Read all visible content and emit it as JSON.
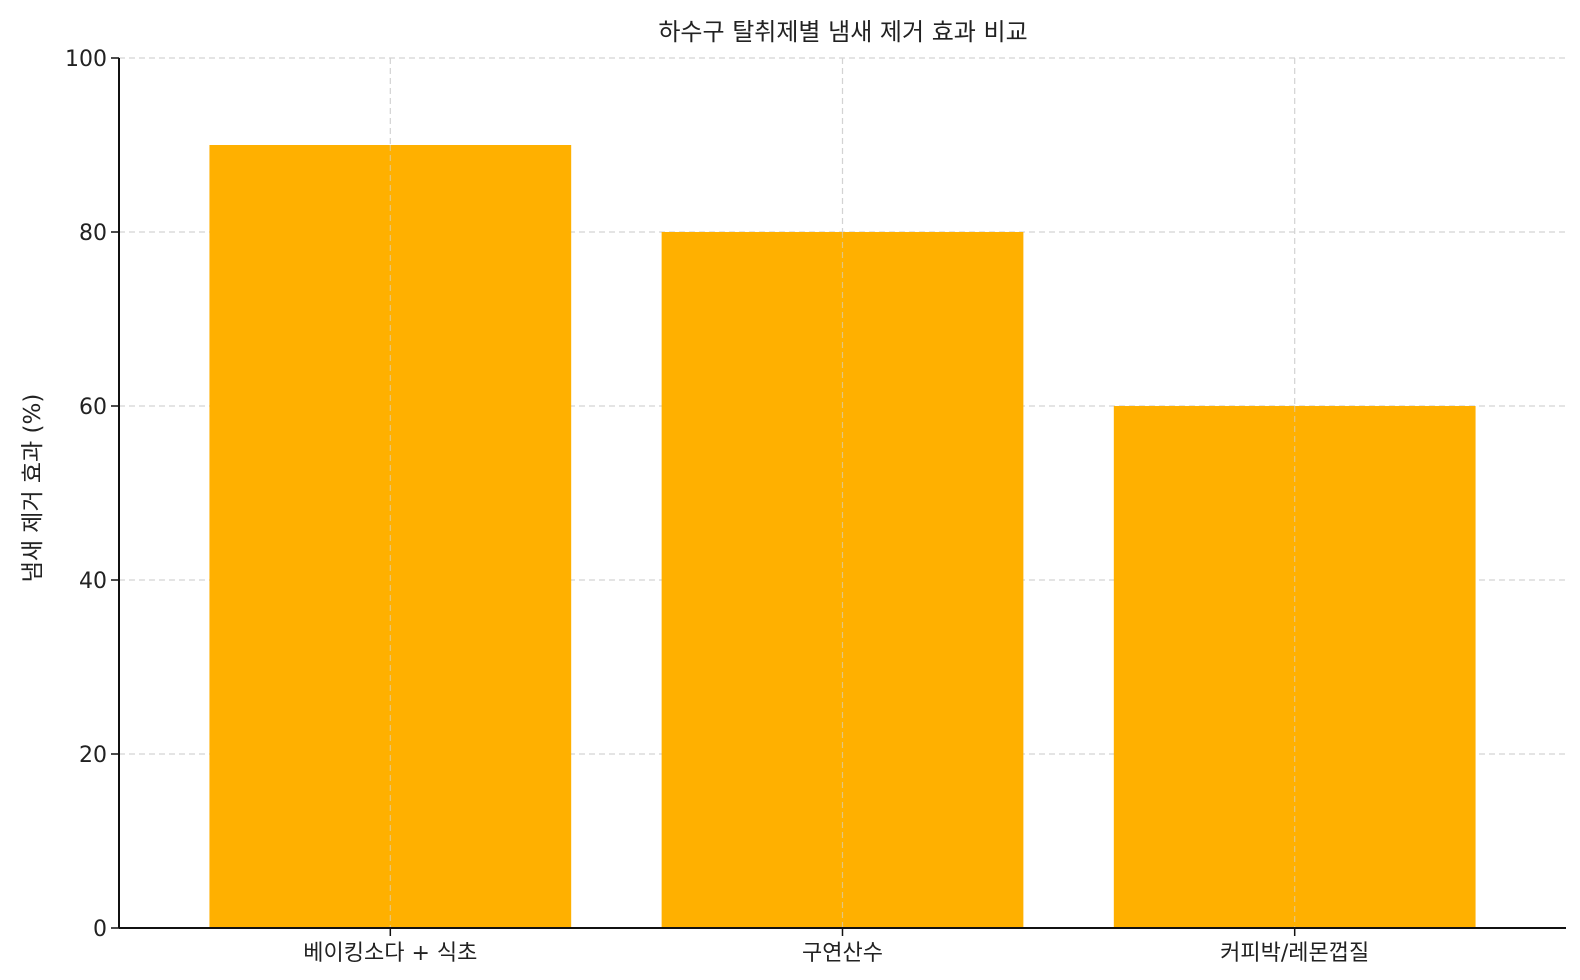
{
  "chart_data": {
    "type": "bar",
    "title": "하수구 탈취제별 냄새 제거 효과 비교",
    "xlabel": "",
    "ylabel": "냄새 제거 효과 (%)",
    "categories": [
      "베이킹소다 + 식초",
      "구연산수",
      "커피박/레몬껍질"
    ],
    "values": [
      90,
      80,
      60
    ],
    "ylim": [
      0,
      100
    ],
    "yticks": [
      0,
      20,
      40,
      60,
      80,
      100
    ],
    "grid": true,
    "bar_color": "#FFB000"
  }
}
